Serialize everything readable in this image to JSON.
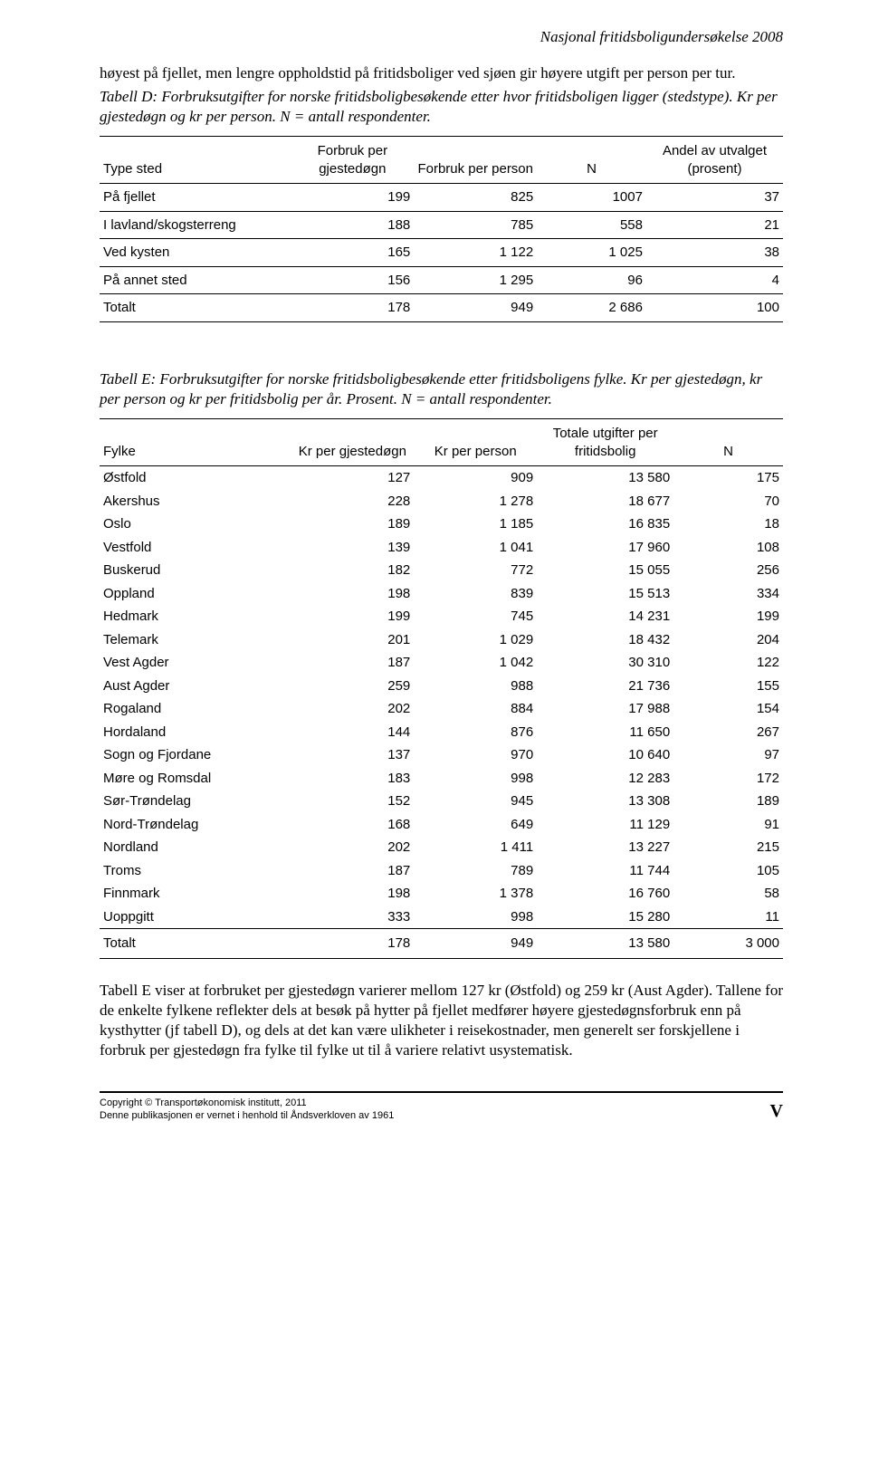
{
  "header": {
    "title_right": "Nasjonal fritidsboligundersøkelse 2008"
  },
  "intro": {
    "paragraph": "høyest på fjellet, men lengre oppholdstid på fritidsboliger ved sjøen gir høyere utgift per person per tur.",
    "caption_d": "Tabell D: Forbruksutgifter for norske fritidsboligbesøkende etter hvor fritidsboligen ligger (stedstype). Kr per gjestedøgn og kr per person. N = antall respondenter."
  },
  "table_d": {
    "headers": {
      "col0": "Type sted",
      "col1": "Forbruk per gjestedøgn",
      "col2": "Forbruk per person",
      "col3": "N",
      "col4": "Andel av utvalget (prosent)"
    },
    "rows": [
      {
        "c0": "På fjellet",
        "c1": "199",
        "c2": "825",
        "c3": "1007",
        "c4": "37"
      },
      {
        "c0": "I lavland/skogsterreng",
        "c1": "188",
        "c2": "785",
        "c3": "558",
        "c4": "21"
      },
      {
        "c0": "Ved kysten",
        "c1": "165",
        "c2": "1 122",
        "c3": "1 025",
        "c4": "38"
      },
      {
        "c0": "På annet sted",
        "c1": "156",
        "c2": "1 295",
        "c3": "96",
        "c4": "4"
      },
      {
        "c0": "Totalt",
        "c1": "178",
        "c2": "949",
        "c3": "2 686",
        "c4": "100"
      }
    ]
  },
  "section_e": {
    "caption": "Tabell E: Forbruksutgifter for norske fritidsboligbesøkende etter fritidsboligens fylke. Kr per gjestedøgn, kr per person og kr per fritidsbolig per år. Prosent. N = antall respondenter."
  },
  "table_e": {
    "headers": {
      "col0": "Fylke",
      "col1": "Kr per gjestedøgn",
      "col2": "Kr per person",
      "col3": "Totale utgifter per fritidsbolig",
      "col4": "N"
    },
    "rows": [
      {
        "c0": "Østfold",
        "c1": "127",
        "c2": "909",
        "c3": "13 580",
        "c4": "175"
      },
      {
        "c0": "Akershus",
        "c1": "228",
        "c2": "1 278",
        "c3": "18 677",
        "c4": "70"
      },
      {
        "c0": "Oslo",
        "c1": "189",
        "c2": "1 185",
        "c3": "16 835",
        "c4": "18"
      },
      {
        "c0": "Vestfold",
        "c1": "139",
        "c2": "1 041",
        "c3": "17 960",
        "c4": "108"
      },
      {
        "c0": "Buskerud",
        "c1": "182",
        "c2": "772",
        "c3": "15 055",
        "c4": "256"
      },
      {
        "c0": "Oppland",
        "c1": "198",
        "c2": "839",
        "c3": "15 513",
        "c4": "334"
      },
      {
        "c0": "Hedmark",
        "c1": "199",
        "c2": "745",
        "c3": "14 231",
        "c4": "199"
      },
      {
        "c0": "Telemark",
        "c1": "201",
        "c2": "1 029",
        "c3": "18 432",
        "c4": "204"
      },
      {
        "c0": "Vest Agder",
        "c1": "187",
        "c2": "1 042",
        "c3": "30 310",
        "c4": "122"
      },
      {
        "c0": "Aust Agder",
        "c1": "259",
        "c2": "988",
        "c3": "21 736",
        "c4": "155"
      },
      {
        "c0": "Rogaland",
        "c1": "202",
        "c2": "884",
        "c3": "17 988",
        "c4": "154"
      },
      {
        "c0": "Hordaland",
        "c1": "144",
        "c2": "876",
        "c3": "11 650",
        "c4": "267"
      },
      {
        "c0": "Sogn og Fjordane",
        "c1": "137",
        "c2": "970",
        "c3": "10 640",
        "c4": "97"
      },
      {
        "c0": "Møre og Romsdal",
        "c1": "183",
        "c2": "998",
        "c3": "12 283",
        "c4": "172"
      },
      {
        "c0": "Sør-Trøndelag",
        "c1": "152",
        "c2": "945",
        "c3": "13 308",
        "c4": "189"
      },
      {
        "c0": "Nord-Trøndelag",
        "c1": "168",
        "c2": "649",
        "c3": "11 129",
        "c4": "91"
      },
      {
        "c0": "Nordland",
        "c1": "202",
        "c2": "1 411",
        "c3": "13 227",
        "c4": "215"
      },
      {
        "c0": "Troms",
        "c1": "187",
        "c2": "789",
        "c3": "11 744",
        "c4": "105"
      },
      {
        "c0": "Finnmark",
        "c1": "198",
        "c2": "1 378",
        "c3": "16 760",
        "c4": "58"
      },
      {
        "c0": "Uoppgitt",
        "c1": "333",
        "c2": "998",
        "c3": "15 280",
        "c4": "11"
      }
    ],
    "total": {
      "c0": "Totalt",
      "c1": "178",
      "c2": "949",
      "c3": "13 580",
      "c4": "3 000"
    }
  },
  "closing": {
    "paragraph": "Tabell E viser at forbruket per gjestedøgn varierer mellom 127 kr (Østfold) og 259 kr (Aust Agder). Tallene for de enkelte fylkene reflekter dels at besøk på hytter på fjellet medfører høyere gjestedøgnsforbruk enn på kysthytter (jf tabell D), og dels at det kan være ulikheter i reisekostnader, men generelt ser forskjellene i forbruk per gjestedøgn fra fylke til fylke ut til å variere relativt usystematisk."
  },
  "footer": {
    "line1": "Copyright © Transportøkonomisk institutt, 2011",
    "line2": "Denne publikasjonen er vernet i henhold til Åndsverkloven av 1961",
    "page": "V"
  },
  "style": {
    "body_width": 960,
    "body_bg": "#ffffff",
    "text_color": "#000000",
    "border_color": "#000000",
    "serif_font": "Times New Roman",
    "sans_font": "Arial",
    "body_fontsize": 17,
    "table_fontsize": 15,
    "footer_fontsize": 11
  }
}
